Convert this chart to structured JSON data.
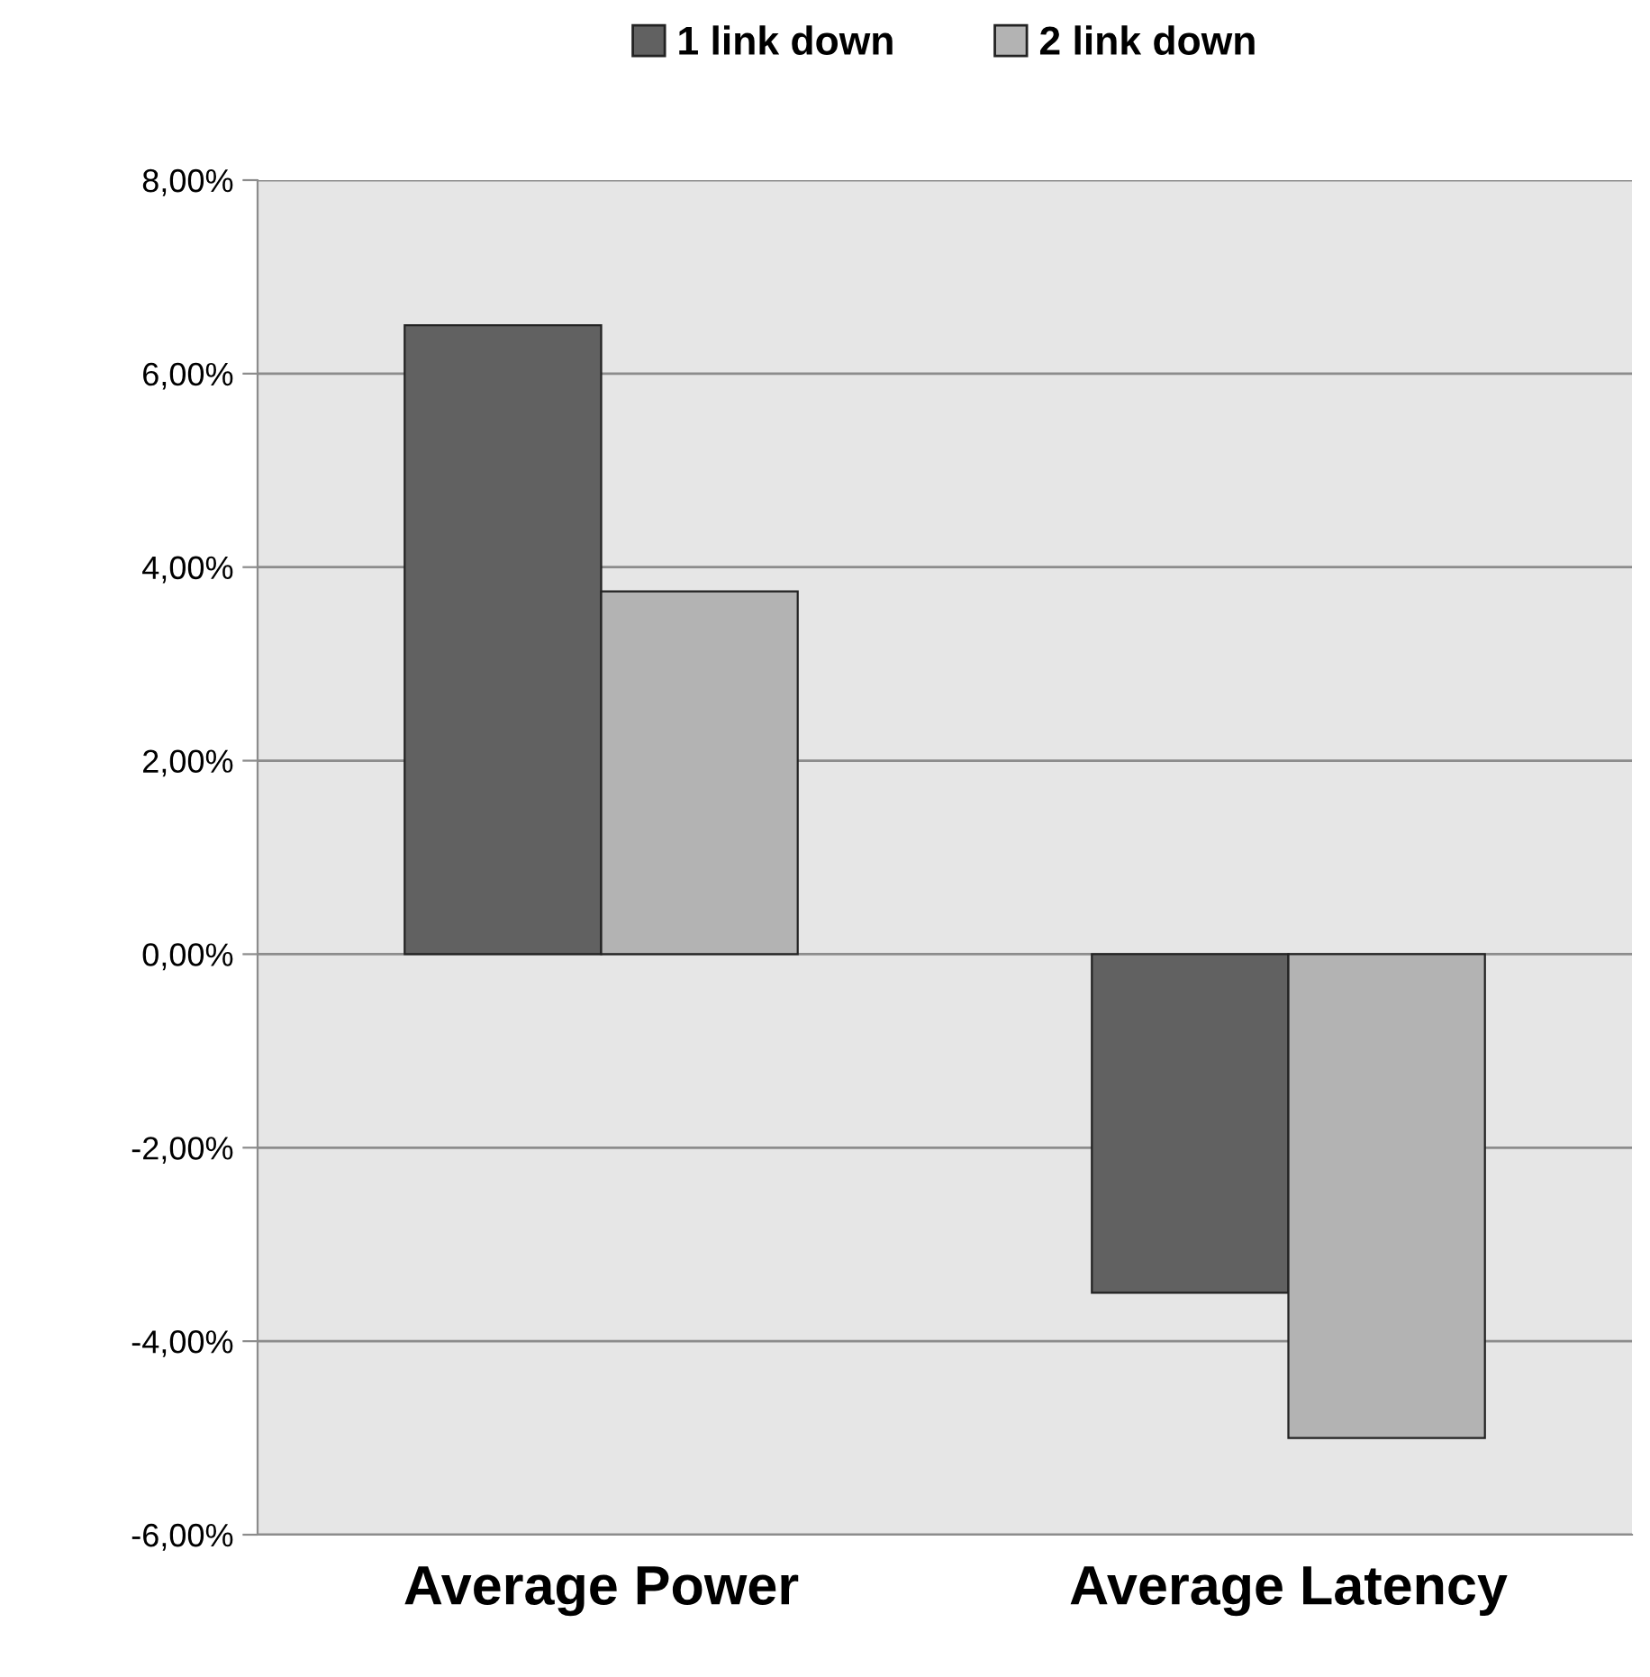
{
  "chart_data": {
    "type": "bar",
    "categories": [
      "Average Power",
      "Average Latency"
    ],
    "series": [
      {
        "name": "1 link down",
        "color": "#616161",
        "values": [
          6.5,
          -3.5
        ]
      },
      {
        "name": "2 link down",
        "color": "#b3b3b3",
        "values": [
          3.75,
          -5.0
        ]
      }
    ],
    "ylim": [
      -6,
      8
    ],
    "yticks": [
      {
        "value": -6,
        "label": "-6,00%"
      },
      {
        "value": -4,
        "label": "-4,00%"
      },
      {
        "value": -2,
        "label": "-2,00%"
      },
      {
        "value": 0,
        "label": "0,00%"
      },
      {
        "value": 2,
        "label": "2,00%"
      },
      {
        "value": 4,
        "label": "4,00%"
      },
      {
        "value": 6,
        "label": "6,00%"
      },
      {
        "value": 8,
        "label": "8,00%"
      }
    ],
    "grid": "y",
    "legend": "top"
  }
}
